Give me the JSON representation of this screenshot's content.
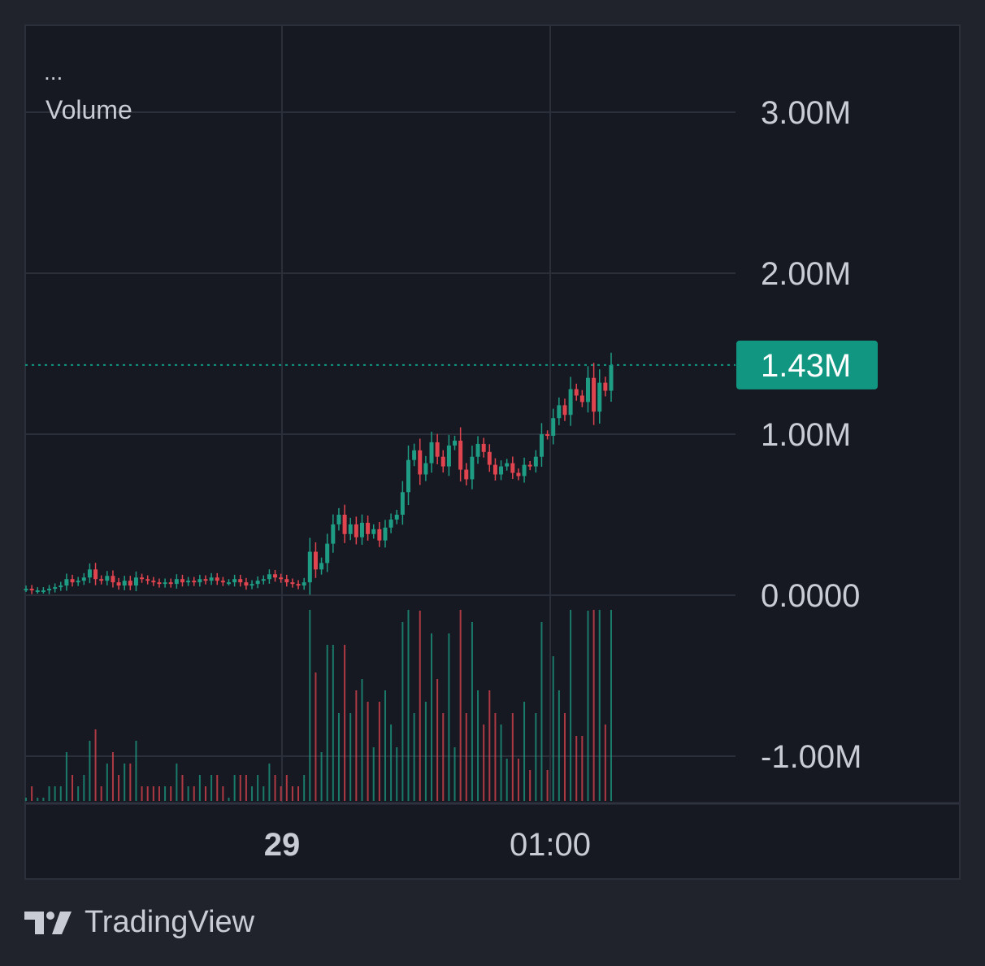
{
  "legend": {
    "menu": "...",
    "series_label": "Volume"
  },
  "brand": {
    "name": "TradingView"
  },
  "colors": {
    "background": "#20222c",
    "pane": "#161822",
    "grid": "#2b2f3a",
    "up": "#1e9c84",
    "down": "#e0454f",
    "price_tag": "#119781",
    "text": "#c9ccd4"
  },
  "chart_data": {
    "type": "candlestick",
    "ylim": [
      -1200000,
      3400000
    ],
    "y_ticks": [
      {
        "value": 3000000,
        "label": "3.00M"
      },
      {
        "value": 2000000,
        "label": "2.00M"
      },
      {
        "value": 1000000,
        "label": "1.00M"
      },
      {
        "value": 0,
        "label": "0.0000"
      },
      {
        "value": -1000000,
        "label": "-1.00M"
      }
    ],
    "x_ticks": [
      "29",
      "01:00"
    ],
    "last_value": 1430000,
    "last_value_label": "1.43M",
    "series": [
      {
        "name": "Volume",
        "close_path": [
          0.04,
          0.03,
          0.03,
          0.03,
          0.04,
          0.05,
          0.06,
          0.1,
          0.08,
          0.09,
          0.11,
          0.16,
          0.1,
          0.09,
          0.12,
          0.08,
          0.06,
          0.09,
          0.06,
          0.11,
          0.1,
          0.09,
          0.08,
          0.07,
          0.08,
          0.07,
          0.1,
          0.08,
          0.09,
          0.08,
          0.1,
          0.09,
          0.11,
          0.09,
          0.08,
          0.08,
          0.1,
          0.08,
          0.06,
          0.07,
          0.09,
          0.1,
          0.13,
          0.11,
          0.1,
          0.08,
          0.07,
          0.06,
          0.08,
          0.27,
          0.16,
          0.2,
          0.32,
          0.44,
          0.5,
          0.38,
          0.44,
          0.36,
          0.45,
          0.38,
          0.41,
          0.34,
          0.42,
          0.47,
          0.5,
          0.64,
          0.84,
          0.9,
          0.75,
          0.82,
          0.95,
          0.86,
          0.8,
          0.93,
          0.96,
          0.78,
          0.72,
          0.86,
          0.94,
          0.89,
          0.81,
          0.75,
          0.8,
          0.82,
          0.76,
          0.74,
          0.81,
          0.8,
          0.86,
          1.0,
          0.99,
          1.1,
          1.18,
          1.12,
          1.28,
          1.24,
          1.2,
          1.35,
          1.14,
          1.32,
          1.27,
          1.43
        ]
      }
    ]
  }
}
